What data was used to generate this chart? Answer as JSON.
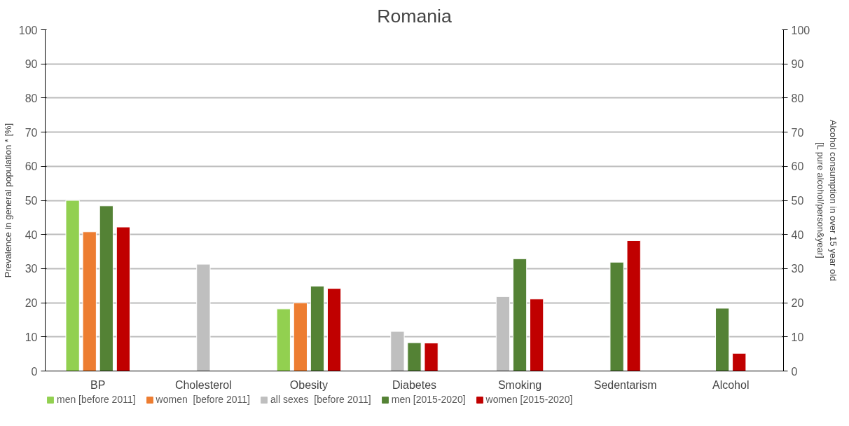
{
  "chart_data": {
    "type": "bar",
    "title": "Romania",
    "ylabel": "Prevalence in general population * [%]",
    "y2label": "Alcohol consumption in over 15 year old\n[L pure alcohol/person&year]",
    "categories": [
      "BP",
      "Cholesterol",
      "Obesity",
      "Diabetes",
      "Smoking",
      "Sedentarism",
      "Alcohol"
    ],
    "series": [
      {
        "name": "men [before 2011]",
        "color": "#92d050",
        "values": [
          50,
          null,
          18.2,
          null,
          null,
          null,
          null
        ]
      },
      {
        "name": "women  [before 2011]",
        "color": "#ed7d31",
        "values": [
          40.8,
          null,
          20,
          null,
          null,
          null,
          null
        ]
      },
      {
        "name": "all sexes  [before 2011]",
        "color": "#bfbfbf",
        "values": [
          null,
          31.3,
          null,
          11.6,
          21.8,
          null,
          null
        ]
      },
      {
        "name": "men [2015-2020]",
        "color": "#548235",
        "values": [
          48.4,
          null,
          24.9,
          8.3,
          32.9,
          31.9,
          18.4
        ]
      },
      {
        "name": "women [2015-2020]",
        "color": "#c00000",
        "values": [
          42.2,
          null,
          24.2,
          8.2,
          21.1,
          38.2,
          5.2
        ]
      }
    ],
    "ylim": [
      0,
      100
    ],
    "yticks": [
      0,
      10,
      20,
      30,
      40,
      50,
      60,
      70,
      80,
      90,
      100
    ],
    "y2lim": [
      0,
      100
    ],
    "y2ticks": [
      0,
      10,
      20,
      30,
      40,
      50,
      60,
      70,
      80,
      90,
      100
    ],
    "grid": "y",
    "legend": "bottom"
  }
}
